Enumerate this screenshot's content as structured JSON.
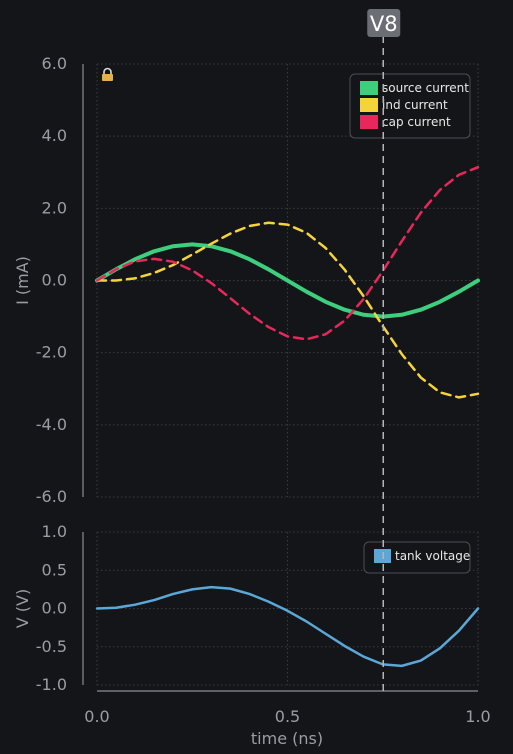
{
  "colors": {
    "background": "#141518",
    "axis": "#8a8d93",
    "grid": "#3a3c42",
    "tick_text": "#9a9da3",
    "legend_bg": "#141518",
    "legend_border": "#4a4d54",
    "legend_text": "#e8e8e8",
    "cursor": "#b5b5b5",
    "cursor_badge": "#6b6e74",
    "cursor_badge_text": "#ffffff",
    "lock": "#e8b04a"
  },
  "cursor": {
    "label": "V8",
    "x": 0.75
  },
  "lock_icon": "lock-icon",
  "chart_data": [
    {
      "type": "line",
      "xlabel": "",
      "ylabel": "I (mA)",
      "xlim": [
        0.0,
        1.0
      ],
      "ylim": [
        -6.0,
        6.0
      ],
      "yticks": [
        "6.0",
        "4.0",
        "2.0",
        "0.0",
        "-2.0",
        "-4.0",
        "-6.0"
      ],
      "ytick_values": [
        6,
        4,
        2,
        0,
        -2,
        -4,
        -6
      ],
      "grid": true,
      "legend_position": "top-right",
      "x": [
        0.0,
        0.05,
        0.1,
        0.15,
        0.2,
        0.25,
        0.3,
        0.35,
        0.4,
        0.45,
        0.5,
        0.55,
        0.6,
        0.65,
        0.7,
        0.75,
        0.8,
        0.85,
        0.9,
        0.95,
        1.0
      ],
      "series": [
        {
          "name": "source current",
          "color": "#3ecf7e",
          "dash": "solid",
          "values": [
            0.0,
            0.31,
            0.59,
            0.81,
            0.95,
            1.0,
            0.95,
            0.81,
            0.59,
            0.31,
            0.0,
            -0.31,
            -0.59,
            -0.81,
            -0.95,
            -1.0,
            -0.95,
            -0.81,
            -0.59,
            -0.31,
            0.0
          ]
        },
        {
          "name": "ind current",
          "color": "#f5d43b",
          "dash": "dashed",
          "values": [
            0.0,
            0.0,
            0.06,
            0.21,
            0.43,
            0.72,
            1.02,
            1.3,
            1.51,
            1.6,
            1.55,
            1.32,
            0.9,
            0.3,
            -0.44,
            -1.26,
            -2.04,
            -2.69,
            -3.1,
            -3.24,
            -3.14
          ]
        },
        {
          "name": "cap current",
          "color": "#e8285a",
          "dash": "dashed",
          "values": [
            0.0,
            0.31,
            0.53,
            0.6,
            0.52,
            0.28,
            -0.07,
            -0.49,
            -0.92,
            -1.29,
            -1.55,
            -1.63,
            -1.49,
            -1.11,
            -0.51,
            0.26,
            1.09,
            1.88,
            2.51,
            2.93,
            3.14
          ]
        }
      ]
    },
    {
      "type": "line",
      "xlabel": "time (ns)",
      "ylabel": "V (V)",
      "xlim": [
        0.0,
        1.0
      ],
      "ylim": [
        -1.0,
        1.0
      ],
      "yticks": [
        "1.0",
        "0.5",
        "0.0",
        "-0.5",
        "-1.0"
      ],
      "ytick_values": [
        1.0,
        0.5,
        0.0,
        -0.5,
        -1.0
      ],
      "xticks": [
        "0.0",
        "0.5",
        "1.0"
      ],
      "xtick_values": [
        0.0,
        0.5,
        1.0
      ],
      "grid": true,
      "legend_position": "top-right",
      "x": [
        0.0,
        0.05,
        0.1,
        0.15,
        0.2,
        0.25,
        0.3,
        0.35,
        0.4,
        0.45,
        0.5,
        0.55,
        0.6,
        0.65,
        0.7,
        0.75,
        0.8,
        0.85,
        0.9,
        0.95,
        1.0
      ],
      "series": [
        {
          "name": "tank voltage",
          "color": "#5ba8d8",
          "dash": "solid",
          "values": [
            0.0,
            0.01,
            0.05,
            0.11,
            0.19,
            0.25,
            0.28,
            0.26,
            0.19,
            0.09,
            -0.03,
            -0.17,
            -0.33,
            -0.49,
            -0.63,
            -0.73,
            -0.75,
            -0.68,
            -0.52,
            -0.29,
            0.0
          ]
        }
      ]
    }
  ]
}
